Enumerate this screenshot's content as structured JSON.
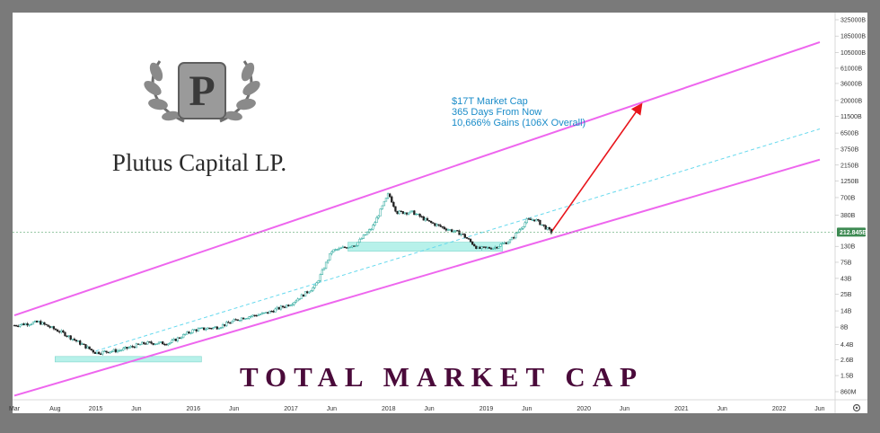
{
  "branding": {
    "name": "Plutus Capital LP.",
    "monogram": "P",
    "icon": "laurel-wreath-icon"
  },
  "annotation": {
    "lines": [
      "$17T Market Cap",
      "365 Days From Now",
      "10,666% Gains (106X Overall)"
    ]
  },
  "colors": {
    "channel": "#ee66ee",
    "midline": "#66d9ee",
    "arrow": "#e8141b",
    "support_box": "#b7f1ea",
    "candle_up": "#26a69a",
    "candle_down": "#222222",
    "price_tag": "#3d8a52",
    "title": "#4a0a3a",
    "annotation": "#1a8cc9"
  },
  "chart_data": {
    "type": "candlestick",
    "title": "TOTAL MARKET CAP",
    "yscale": "log",
    "ylabel": "",
    "xlabel": "",
    "x_tick_labels": [
      "Mar",
      "Aug",
      "2015",
      "Jun",
      "2016",
      "Jun",
      "2017",
      "Jun",
      "2018",
      "Jun",
      "2019",
      "Jun",
      "2020",
      "Jun",
      "2021",
      "Jun",
      "2022",
      "Jun"
    ],
    "y_tick_labels": [
      "860M",
      "1.5B",
      "2.6B",
      "4.4B",
      "8B",
      "14B",
      "25B",
      "43B",
      "75B",
      "130B",
      "212.845B",
      "380B",
      "700B",
      "1250B",
      "2150B",
      "3750B",
      "6500B",
      "11500B",
      "20000B",
      "36000B",
      "61000B",
      "105000B",
      "185000B",
      "325000B"
    ],
    "current_value_label": "212.845B",
    "x": [
      "2014-03",
      "2014-06",
      "2014-09",
      "2015-01",
      "2015-04",
      "2015-07",
      "2015-10",
      "2016-01",
      "2016-04",
      "2016-07",
      "2016-10",
      "2017-01",
      "2017-04",
      "2017-06",
      "2017-09",
      "2017-11",
      "2018-01",
      "2018-02",
      "2018-04",
      "2018-06",
      "2018-08",
      "2018-10",
      "2018-12",
      "2019-02",
      "2019-04",
      "2019-06",
      "2019-07",
      "2019-09"
    ],
    "values": [
      8.5,
      9.5,
      6.5,
      3.3,
      3.6,
      4.6,
      4.6,
      7.2,
      8,
      11,
      13,
      18,
      33,
      110,
      140,
      250,
      800,
      420,
      420,
      300,
      240,
      200,
      120,
      125,
      160,
      320,
      330,
      212.845
    ],
    "value_units": "billion USD",
    "channel_upper": {
      "x": [
        "2014-03",
        "2022-06"
      ],
      "values": [
        12,
        150000
      ]
    },
    "channel_lower": {
      "x": [
        "2014-03",
        "2022-06"
      ],
      "values": [
        0.75,
        2600
      ]
    },
    "trend_midline": {
      "x": [
        "2015-01",
        "2022-06"
      ],
      "values": [
        3.5,
        7500
      ]
    },
    "projection_arrow": {
      "x": [
        "2019-09",
        "2020-08"
      ],
      "values": [
        212.845,
        17000
      ]
    },
    "support_zones": [
      {
        "x": [
          "2014-08",
          "2016-02"
        ],
        "values": [
          2.4,
          2.9
        ]
      },
      {
        "x": [
          "2017-08",
          "2019-03"
        ],
        "values": [
          110,
          150
        ]
      }
    ]
  }
}
